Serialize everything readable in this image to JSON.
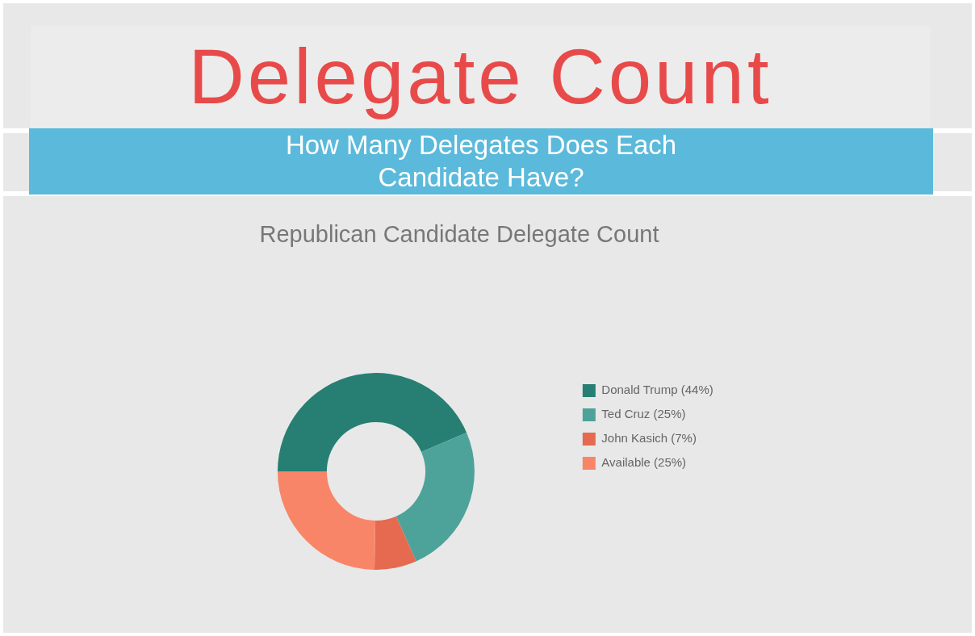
{
  "chart_data": {
    "type": "donut",
    "title": "Delegate Count",
    "subtitle": "How Many Delegates Does Each Candidate Have?",
    "annotations": [
      "Republican Candidate Delegate Count"
    ],
    "categories": [
      "Donald Trump (44%)",
      "Ted Cruz (25%)",
      "John Kasich (7%)",
      "Available (25%)"
    ],
    "values": [
      44,
      25,
      7,
      25
    ],
    "colors": [
      "#267f72",
      "#4da39a",
      "#e56a50",
      "#f98568"
    ],
    "legend": "top right"
  }
}
